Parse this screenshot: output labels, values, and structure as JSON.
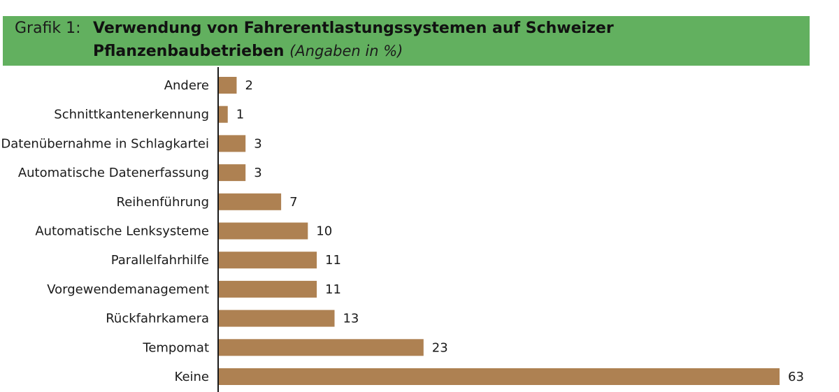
{
  "header": {
    "figure_label": "Grafik 1:",
    "title_line1": "Verwendung von Fahrerentlastungssystemen auf Schweizer",
    "title_line2": "Pflanzenbaubetrieben",
    "subtitle": "(Angaben in %)"
  },
  "colors": {
    "header_bg": "#62b05f",
    "bar": "#ae8152",
    "axis": "#1a1a1a",
    "text": "#1a1a1a"
  },
  "chart_data": {
    "type": "bar",
    "orientation": "horizontal",
    "title": "Verwendung von Fahrerentlastungssystemen auf Schweizer Pflanzenbaubetrieben",
    "subtitle": "(Angaben in %)",
    "categories": [
      "Andere",
      "Schnittkantenerkennung",
      "Datenübernahme in Schlagkartei",
      "Automatische Datenerfassung",
      "Reihenführung",
      "Automatische Lenksysteme",
      "Parallelfahrhilfe",
      "Vorgewendemanagement",
      "Rückfahrkamera",
      "Tempomat",
      "Keine"
    ],
    "values": [
      2,
      1,
      3,
      3,
      7,
      10,
      11,
      11,
      13,
      23,
      63
    ],
    "xlim": [
      0,
      63
    ],
    "grid": false,
    "legend": "none",
    "data_labels": true
  }
}
